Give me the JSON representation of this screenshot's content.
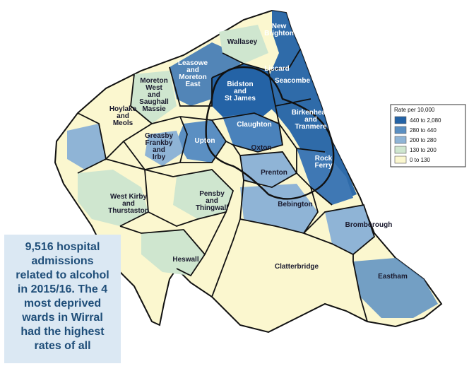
{
  "wards": [
    {
      "id": "new-brighton",
      "label": "New\nBrighton",
      "light": true
    },
    {
      "id": "wallasey",
      "label": "Wallasey",
      "light": false
    },
    {
      "id": "liscard",
      "label": "Liscard",
      "light": true
    },
    {
      "id": "leasowe-moreton-east",
      "label": "Leasowe\nand\nMoreton\nEast",
      "light": true
    },
    {
      "id": "seacombe",
      "label": "Seacombe",
      "light": true
    },
    {
      "id": "moreton-west-saughall-massie",
      "label": "Moreton\nWest\nand\nSaughall\nMassie",
      "light": false
    },
    {
      "id": "bidston-st-james",
      "label": "Bidston\nand\nSt James",
      "light": true
    },
    {
      "id": "hoylake-meols",
      "label": "Hoylake\nand\nMeols",
      "light": false
    },
    {
      "id": "birkenhead-tranmere",
      "label": "Birkenhead\nand\nTranmere",
      "light": true
    },
    {
      "id": "claughton",
      "label": "Claughton",
      "light": true
    },
    {
      "id": "greasby-frankby-irby",
      "label": "Greasby\nFrankby\nand\nIrby",
      "light": false
    },
    {
      "id": "upton",
      "label": "Upton",
      "light": true
    },
    {
      "id": "oxton",
      "label": "Oxton",
      "light": false
    },
    {
      "id": "rock-ferry",
      "label": "Rock\nFerry",
      "light": true
    },
    {
      "id": "prenton",
      "label": "Prenton",
      "light": false
    },
    {
      "id": "west-kirby-thurstaston",
      "label": "West Kirby\nand\nThurstaston",
      "light": false
    },
    {
      "id": "pensby-thingwall",
      "label": "Pensby\nand\nThingwall",
      "light": false
    },
    {
      "id": "bebington",
      "label": "Bebington",
      "light": false
    },
    {
      "id": "bromborough",
      "label": "Bromborough",
      "light": false
    },
    {
      "id": "heswall",
      "label": "Heswall",
      "light": false
    },
    {
      "id": "clatterbridge",
      "label": "Clatterbridge",
      "light": false
    },
    {
      "id": "eastham",
      "label": "Eastham",
      "light": false
    }
  ],
  "legend": {
    "title": "Rate per 10,000",
    "items": [
      {
        "range": "440 to 2,080",
        "color": "#2463a6"
      },
      {
        "range": "280 to 440",
        "color": "#5b8fc2"
      },
      {
        "range": "200 to 280",
        "color": "#8fb4d6"
      },
      {
        "range": "130 to 200",
        "color": "#cfe6cf"
      },
      {
        "range": "0 to 130",
        "color": "#fbf7cf"
      }
    ]
  },
  "callout": {
    "lines": [
      "9,516 hospital",
      "admissions",
      "related to alcohol",
      "in 2015/16. The 4",
      "most deprived",
      "wards in Wirral",
      "had the highest",
      "rates of all"
    ]
  }
}
